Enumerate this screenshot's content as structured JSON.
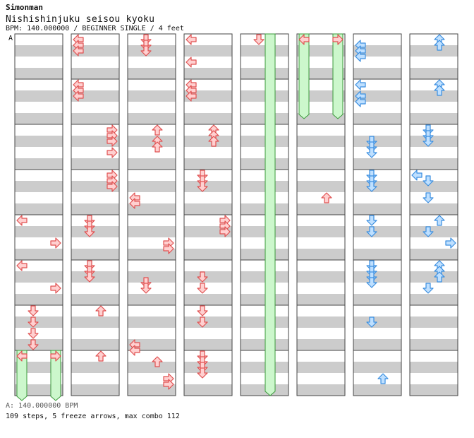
{
  "header": {
    "artist": "Simonman",
    "title": "Nishishinjuku seisou kyoku",
    "meta": "BPM: 140.000000 / BEGINNER SINGLE / 4 feet"
  },
  "bpm_marker": "A",
  "footer": {
    "bpm_legend": "A: 140.000000 BPM",
    "stats": "109 steps, 5 freeze arrows, max combo 112"
  },
  "colors": {
    "stripe": "#cccccc",
    "border": "#444444",
    "red_fill": "#ffd0d0",
    "red_stroke": "#e05050",
    "blue_fill": "#bfe0ff",
    "blue_stroke": "#3a8ee0",
    "freeze_fill": "#ccf7cc",
    "freeze_stroke": "#3a9a3a"
  },
  "chart_data": {
    "type": "step-chart",
    "mode": "BEGINNER SINGLE",
    "bpm": 140,
    "lanes": [
      "left",
      "down",
      "up",
      "right"
    ],
    "beats_per_measure": 4,
    "columns": 8,
    "measures_per_column": 8,
    "steps": [
      {
        "m": 4,
        "b": 0,
        "lane": "left"
      },
      {
        "m": 4,
        "b": 2,
        "lane": "right"
      },
      {
        "m": 5,
        "b": 0,
        "lane": "left"
      },
      {
        "m": 5,
        "b": 2,
        "lane": "right"
      },
      {
        "m": 6,
        "b": 0,
        "lane": "down"
      },
      {
        "m": 6,
        "b": 1,
        "lane": "down"
      },
      {
        "m": 6,
        "b": 2,
        "lane": "down"
      },
      {
        "m": 6,
        "b": 3,
        "lane": "down"
      },
      {
        "m": 7,
        "b": 0,
        "lane": "left"
      },
      {
        "m": 7,
        "b": 0,
        "lane": "right"
      },
      {
        "m": 8,
        "b": 0,
        "lane": "left"
      },
      {
        "m": 8,
        "b": 0.5,
        "lane": "left"
      },
      {
        "m": 8,
        "b": 1,
        "lane": "left"
      },
      {
        "m": 9,
        "b": 0,
        "lane": "left"
      },
      {
        "m": 9,
        "b": 0.5,
        "lane": "left"
      },
      {
        "m": 9,
        "b": 1,
        "lane": "left"
      },
      {
        "m": 10,
        "b": 0,
        "lane": "right"
      },
      {
        "m": 10,
        "b": 0.5,
        "lane": "right"
      },
      {
        "m": 10,
        "b": 1,
        "lane": "right"
      },
      {
        "m": 10,
        "b": 2,
        "lane": "right"
      },
      {
        "m": 11,
        "b": 0,
        "lane": "right"
      },
      {
        "m": 11,
        "b": 0.5,
        "lane": "right"
      },
      {
        "m": 11,
        "b": 1,
        "lane": "right"
      },
      {
        "m": 12,
        "b": 0,
        "lane": "down"
      },
      {
        "m": 12,
        "b": 0.5,
        "lane": "down"
      },
      {
        "m": 12,
        "b": 1,
        "lane": "down"
      },
      {
        "m": 13,
        "b": 0,
        "lane": "down"
      },
      {
        "m": 13,
        "b": 0.5,
        "lane": "down"
      },
      {
        "m": 13,
        "b": 1,
        "lane": "down"
      },
      {
        "m": 14,
        "b": 0,
        "lane": "up"
      },
      {
        "m": 15,
        "b": 0,
        "lane": "up"
      },
      {
        "m": 16,
        "b": 0,
        "lane": "down"
      },
      {
        "m": 16,
        "b": 0.5,
        "lane": "down"
      },
      {
        "m": 16,
        "b": 1,
        "lane": "down"
      },
      {
        "m": 18,
        "b": 0,
        "lane": "up"
      },
      {
        "m": 18,
        "b": 1,
        "lane": "up"
      },
      {
        "m": 18,
        "b": 1.5,
        "lane": "up"
      },
      {
        "m": 19,
        "b": 2,
        "lane": "left"
      },
      {
        "m": 19,
        "b": 2.5,
        "lane": "left"
      },
      {
        "m": 20,
        "b": 2,
        "lane": "right"
      },
      {
        "m": 20,
        "b": 2.5,
        "lane": "right"
      },
      {
        "m": 21,
        "b": 1.5,
        "lane": "down"
      },
      {
        "m": 21,
        "b": 2,
        "lane": "down"
      },
      {
        "m": 22,
        "b": 3,
        "lane": "left"
      },
      {
        "m": 22,
        "b": 3.5,
        "lane": "left"
      },
      {
        "m": 23,
        "b": 2,
        "lane": "right"
      },
      {
        "m": 23,
        "b": 2.5,
        "lane": "right"
      },
      {
        "m": 23,
        "b": 0.5,
        "lane": "up"
      },
      {
        "m": 24,
        "b": 0,
        "lane": "left"
      },
      {
        "m": 24,
        "b": 2,
        "lane": "left"
      },
      {
        "m": 25,
        "b": 0,
        "lane": "left"
      },
      {
        "m": 25,
        "b": 0.5,
        "lane": "left"
      },
      {
        "m": 25,
        "b": 1,
        "lane": "left"
      },
      {
        "m": 26,
        "b": 0,
        "lane": "up"
      },
      {
        "m": 26,
        "b": 0.5,
        "lane": "up"
      },
      {
        "m": 26,
        "b": 1,
        "lane": "up"
      },
      {
        "m": 27,
        "b": 0,
        "lane": "down"
      },
      {
        "m": 27,
        "b": 0.5,
        "lane": "down"
      },
      {
        "m": 27,
        "b": 1,
        "lane": "down"
      },
      {
        "m": 28,
        "b": 0,
        "lane": "right"
      },
      {
        "m": 28,
        "b": 0.5,
        "lane": "right"
      },
      {
        "m": 28,
        "b": 1,
        "lane": "right"
      },
      {
        "m": 29,
        "b": 1,
        "lane": "down"
      },
      {
        "m": 29,
        "b": 2,
        "lane": "down"
      },
      {
        "m": 30,
        "b": 0,
        "lane": "down"
      },
      {
        "m": 30,
        "b": 1,
        "lane": "down"
      },
      {
        "m": 31,
        "b": 0,
        "lane": "down"
      },
      {
        "m": 31,
        "b": 0.5,
        "lane": "down"
      },
      {
        "m": 31,
        "b": 1,
        "lane": "down"
      },
      {
        "m": 31,
        "b": 1.5,
        "lane": "down"
      },
      {
        "m": 32,
        "b": 0,
        "lane": "down"
      },
      {
        "m": 40,
        "b": 0,
        "lane": "left"
      },
      {
        "m": 40,
        "b": 0,
        "lane": "right"
      },
      {
        "m": 43,
        "b": 2,
        "lane": "up"
      },
      {
        "m": 48,
        "b": 0.5,
        "lane": "left"
      },
      {
        "m": 48,
        "b": 1,
        "lane": "left"
      },
      {
        "m": 48,
        "b": 1.5,
        "lane": "left"
      },
      {
        "m": 49,
        "b": 0,
        "lane": "left"
      },
      {
        "m": 49,
        "b": 1,
        "lane": "left"
      },
      {
        "m": 49,
        "b": 1.5,
        "lane": "left"
      },
      {
        "m": 50,
        "b": 1,
        "lane": "down"
      },
      {
        "m": 50,
        "b": 1.5,
        "lane": "down"
      },
      {
        "m": 50,
        "b": 2,
        "lane": "down"
      },
      {
        "m": 51,
        "b": 0,
        "lane": "down"
      },
      {
        "m": 51,
        "b": 0.5,
        "lane": "down"
      },
      {
        "m": 51,
        "b": 1,
        "lane": "down"
      },
      {
        "m": 52,
        "b": 0,
        "lane": "down"
      },
      {
        "m": 52,
        "b": 1,
        "lane": "down"
      },
      {
        "m": 53,
        "b": 0,
        "lane": "down"
      },
      {
        "m": 53,
        "b": 0.5,
        "lane": "down"
      },
      {
        "m": 53,
        "b": 1,
        "lane": "down"
      },
      {
        "m": 53,
        "b": 1.5,
        "lane": "down"
      },
      {
        "m": 54,
        "b": 1,
        "lane": "down"
      },
      {
        "m": 55,
        "b": 2,
        "lane": "up"
      },
      {
        "m": 56,
        "b": 0,
        "lane": "up"
      },
      {
        "m": 56,
        "b": 0.5,
        "lane": "up"
      },
      {
        "m": 57,
        "b": 0,
        "lane": "up"
      },
      {
        "m": 57,
        "b": 0.5,
        "lane": "up"
      },
      {
        "m": 58,
        "b": 0,
        "lane": "down"
      },
      {
        "m": 58,
        "b": 0.5,
        "lane": "down"
      },
      {
        "m": 58,
        "b": 1,
        "lane": "down"
      },
      {
        "m": 59,
        "b": 0,
        "lane": "left"
      },
      {
        "m": 59,
        "b": 0.5,
        "lane": "down"
      },
      {
        "m": 59,
        "b": 2,
        "lane": "down"
      },
      {
        "m": 60,
        "b": 0,
        "lane": "up"
      },
      {
        "m": 60,
        "b": 1,
        "lane": "down"
      },
      {
        "m": 60,
        "b": 2,
        "lane": "right"
      },
      {
        "m": 61,
        "b": 0,
        "lane": "up"
      },
      {
        "m": 61,
        "b": 0.5,
        "lane": "up"
      },
      {
        "m": 61,
        "b": 1,
        "lane": "up"
      },
      {
        "m": 61,
        "b": 2,
        "lane": "down"
      }
    ],
    "freezes": [
      {
        "lane": "left",
        "start": [
          7,
          0
        ],
        "end": [
          8,
          3.5
        ]
      },
      {
        "lane": "right",
        "start": [
          7,
          0
        ],
        "end": [
          8,
          3.5
        ]
      },
      {
        "lane": "up",
        "start": [
          32,
          0
        ],
        "end": [
          39,
          4
        ]
      },
      {
        "lane": "left",
        "start": [
          40,
          0
        ],
        "end": [
          41,
          3.5
        ]
      },
      {
        "lane": "right",
        "start": [
          40,
          0
        ],
        "end": [
          41,
          3.5
        ]
      }
    ]
  }
}
